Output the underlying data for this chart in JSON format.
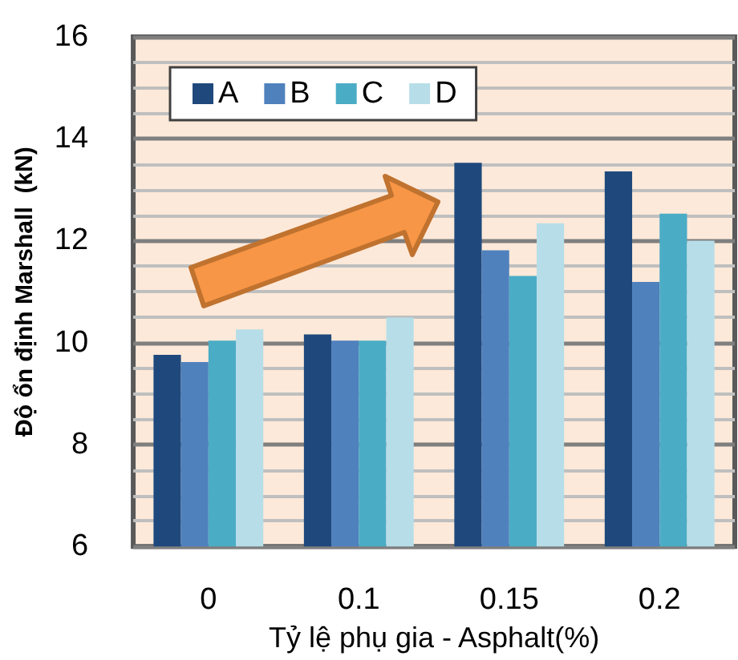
{
  "chart_data": {
    "type": "bar",
    "xlabel": "Tỷ lệ phụ gia - Asphalt(%)",
    "ylabel": "Độ ổn định Marshall  (kN)",
    "categories": [
      "0",
      "0.1",
      "0.15",
      "0.2"
    ],
    "series": [
      {
        "name": "A",
        "color": "#1f497d",
        "values": [
          9.76,
          10.16,
          13.53,
          13.36
        ]
      },
      {
        "name": "B",
        "color": "#4f81bd",
        "values": [
          9.62,
          10.04,
          11.81,
          11.19
        ]
      },
      {
        "name": "C",
        "color": "#4bacc6",
        "values": [
          10.04,
          10.04,
          11.31,
          12.53
        ]
      },
      {
        "name": "D",
        "color": "#b7dee8",
        "values": [
          10.26,
          10.49,
          12.34,
          12.0
        ]
      }
    ],
    "ylim": [
      6,
      16
    ],
    "yticks": [
      6,
      8,
      10,
      12,
      14,
      16
    ],
    "grid": "y",
    "legend": "top left"
  }
}
